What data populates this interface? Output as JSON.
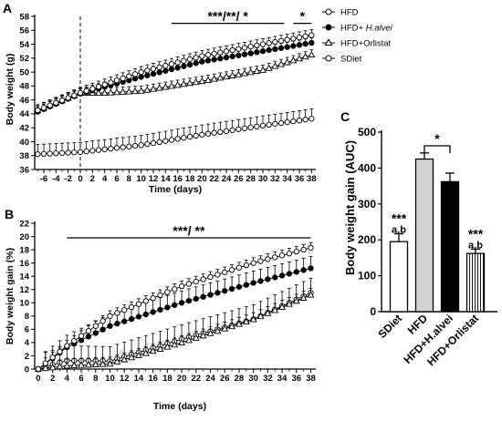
{
  "panels": {
    "a": "A",
    "b": "B",
    "c": "C"
  },
  "legend": [
    {
      "label": "HFD",
      "marker": "open-circle"
    },
    {
      "label_prefix": "HFD+ ",
      "label_italic": "H.alvei",
      "marker": "filled-circle"
    },
    {
      "label": "HFD+Orlistat",
      "marker": "open-triangle"
    },
    {
      "label": "SDiet",
      "marker": "open-circle"
    }
  ],
  "chart_data": [
    {
      "type": "line",
      "panel": "A",
      "xlabel": "Time (days)",
      "ylabel": "Body weight (g)",
      "xlim": [
        -7.5,
        38.7
      ],
      "ylim": [
        36,
        58
      ],
      "xticks": [
        -6,
        -4,
        -2,
        0,
        2,
        4,
        6,
        8,
        10,
        12,
        14,
        16,
        18,
        20,
        22,
        24,
        26,
        28,
        30,
        32,
        34,
        36,
        38
      ],
      "yticks": [
        36,
        38,
        40,
        42,
        44,
        46,
        48,
        50,
        52,
        54,
        56,
        58
      ],
      "dashed_vline_x": 0,
      "annotations": [
        {
          "text": "***/**/ *",
          "line_from_x": 15,
          "line_to_x": 33.5,
          "y": 57.0
        },
        {
          "text": "*",
          "line_from_x": 35,
          "line_to_x": 38,
          "y": 57.0
        }
      ],
      "series": [
        {
          "name": "HFD",
          "marker": "open-circle",
          "anchors": [
            [
              -7,
              44.5
            ],
            [
              0,
              47
            ],
            [
              10,
              50
            ],
            [
              20,
              52.3
            ],
            [
              30,
              54
            ],
            [
              38,
              55.3
            ]
          ],
          "err": 0.8
        },
        {
          "name": "HFD+ H.alvei",
          "marker": "filled-circle",
          "anchors": [
            [
              -7,
              44.3
            ],
            [
              0,
              46.9
            ],
            [
              10,
              49.3
            ],
            [
              20,
              51.5
            ],
            [
              30,
              53
            ],
            [
              38,
              54.2
            ]
          ],
          "err": 0.7
        },
        {
          "name": "HFD+Orlistat",
          "marker": "open-triangle",
          "anchors": [
            [
              -7,
              44.5
            ],
            [
              0,
              47
            ],
            [
              4,
              47
            ],
            [
              10,
              47.3
            ],
            [
              20,
              48.7
            ],
            [
              30,
              50.3
            ],
            [
              38,
              52.5
            ]
          ],
          "err": 0.7
        },
        {
          "name": "SDiet",
          "marker": "open-circle",
          "anchors": [
            [
              -7,
              38.2
            ],
            [
              0,
              38.5
            ],
            [
              10,
              39.5
            ],
            [
              20,
              41
            ],
            [
              30,
              42.3
            ],
            [
              38,
              43.3
            ]
          ],
          "err": 1.4
        }
      ]
    },
    {
      "type": "line",
      "panel": "B",
      "xlabel": "Time (days)",
      "ylabel": "Body weight gain (%)",
      "xlim": [
        -0.5,
        38.7
      ],
      "ylim": [
        0,
        22
      ],
      "xticks": [
        0,
        2,
        4,
        6,
        8,
        10,
        12,
        14,
        16,
        18,
        20,
        22,
        24,
        26,
        28,
        30,
        32,
        34,
        36,
        38
      ],
      "yticks": [
        0,
        2,
        4,
        6,
        8,
        10,
        12,
        14,
        16,
        18,
        20,
        22
      ],
      "annotations": [
        {
          "text": "***/ **",
          "line_from_x": 4,
          "line_to_x": 38,
          "y": 19.8
        }
      ],
      "series": [
        {
          "name": "HFD",
          "marker": "open-circle",
          "anchors": [
            [
              0,
              0
            ],
            [
              4,
              3.5
            ],
            [
              10,
              8
            ],
            [
              20,
              12.5
            ],
            [
              30,
              16
            ],
            [
              38,
              18.3
            ]
          ],
          "err": 0.8
        },
        {
          "name": "HFD+ H.alvei",
          "marker": "filled-circle",
          "anchors": [
            [
              0,
              0
            ],
            [
              4,
              3.3
            ],
            [
              10,
              6.5
            ],
            [
              20,
              10
            ],
            [
              30,
              13
            ],
            [
              38,
              15.2
            ]
          ],
          "err": 1.8
        },
        {
          "name": "HFD+Orlistat",
          "marker": "open-triangle",
          "anchors": [
            [
              0,
              0
            ],
            [
              4,
              0.5
            ],
            [
              10,
              0.8
            ],
            [
              20,
              4
            ],
            [
              30,
              7.5
            ],
            [
              38,
              11.2
            ]
          ],
          "err": 1.0
        },
        {
          "name": "SDiet",
          "marker": "open-circle",
          "anchors": [
            [
              0,
              0
            ],
            [
              4,
              1.3
            ],
            [
              10,
              1.2
            ],
            [
              20,
              4.5
            ],
            [
              30,
              7.5
            ],
            [
              38,
              11.5
            ]
          ],
          "err": 2.2
        }
      ]
    },
    {
      "type": "bar",
      "panel": "C",
      "ylabel": "Body weight gain (AUC)",
      "ylim": [
        0,
        500
      ],
      "yticks": [
        0,
        100,
        200,
        300,
        400,
        500
      ],
      "categories": [
        "SDiet",
        "HFD",
        "HFD+H.alvei",
        "HFD+Orlistat"
      ],
      "values": [
        195,
        425,
        362,
        162
      ],
      "errors": [
        22,
        17,
        24,
        12
      ],
      "fills": [
        "white",
        "lightgray",
        "black",
        "vstripes"
      ],
      "bar_annotations": [
        {
          "index": 0,
          "lines": [
            "***",
            "a,b"
          ]
        },
        {
          "index": 3,
          "lines": [
            "***",
            "a,b"
          ]
        }
      ],
      "bracket": {
        "from": 1,
        "to": 2,
        "text": "*",
        "y": 462
      }
    }
  ],
  "colors": {
    "ink": "#000000",
    "hfd_bar": "#d3d3d3",
    "alvei_bar": "#000000",
    "sdiet_bar": "#ffffff"
  }
}
